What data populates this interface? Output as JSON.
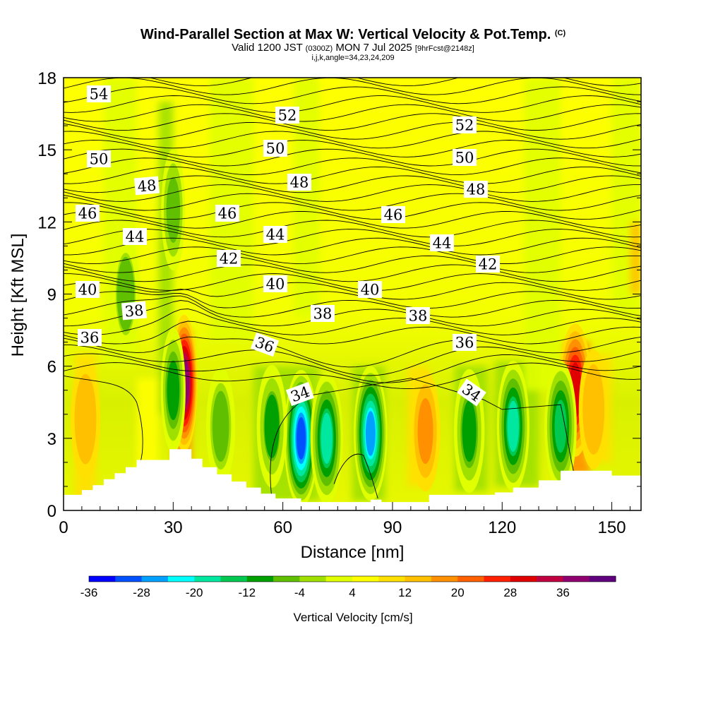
{
  "title": {
    "main": "Wind-Parallel Section at Max W: Vertical Velocity & Pot.Temp.",
    "copyright": "(C)",
    "valid_prefix": "Valid 1200 JST",
    "valid_utc": "(0300Z)",
    "valid_date": "MON 7 Jul 2025",
    "forecast": "[9hrFcst@2148z]",
    "indices": "i,j,k,angle=34,23,24,209"
  },
  "chart_data": {
    "type": "heatmap",
    "xlabel": "Distance [nm]",
    "ylabel": "Height [Kft MSL]",
    "xlim": [
      0,
      158
    ],
    "ylim": [
      0,
      18
    ],
    "x_ticks": [
      0,
      30,
      60,
      90,
      120,
      150
    ],
    "y_ticks": [
      0,
      3,
      6,
      9,
      12,
      15,
      18
    ],
    "colorbar": {
      "label": "Vertical Velocity [cm/s]",
      "tick_labels": [
        -36,
        -28,
        -20,
        -12,
        -4,
        4,
        12,
        20,
        28,
        36
      ],
      "colors": [
        "#0000ff",
        "#0050ff",
        "#00a0ff",
        "#00ffff",
        "#00e8a0",
        "#00c850",
        "#00a000",
        "#60c000",
        "#a0e000",
        "#e0ff00",
        "#ffff00",
        "#ffe000",
        "#ffc000",
        "#ff9000",
        "#ff6000",
        "#ff2000",
        "#e00000",
        "#c00040",
        "#900070",
        "#60007f"
      ]
    },
    "vertical_velocity_cores": [
      {
        "x": 33,
        "y": 5.3,
        "w": 34
      },
      {
        "x": 140,
        "y": 5.0,
        "w": 26
      },
      {
        "x": 6,
        "y": 3.8,
        "w": 11
      },
      {
        "x": 145,
        "y": 4.2,
        "w": 11
      },
      {
        "x": 99,
        "y": 3.3,
        "w": 12
      },
      {
        "x": 43,
        "y": 3.5,
        "w": -10
      },
      {
        "x": 65,
        "y": 3.0,
        "w": -35
      },
      {
        "x": 72,
        "y": 3.0,
        "w": -22
      },
      {
        "x": 84,
        "y": 3.2,
        "w": -30
      },
      {
        "x": 57,
        "y": 3.5,
        "w": -13
      },
      {
        "x": 111,
        "y": 3.3,
        "w": -14
      },
      {
        "x": 123,
        "y": 3.5,
        "w": -22
      },
      {
        "x": 136,
        "y": 3.5,
        "w": -20
      },
      {
        "x": 30,
        "y": 5.0,
        "w": -15
      },
      {
        "x": 30,
        "y": 12.5,
        "w": -12
      },
      {
        "x": 17,
        "y": 9.0,
        "w": -9
      }
    ],
    "potential_temperature_contours": {
      "labels": [
        "54",
        "52",
        "52",
        "50",
        "50",
        "50",
        "48",
        "48",
        "48",
        "46",
        "46",
        "46",
        "44",
        "44",
        "44",
        "42",
        "42",
        "40",
        "40",
        "40",
        "38",
        "38",
        "38",
        "36",
        "36",
        "36",
        "34",
        "34"
      ]
    },
    "terrain_profile": [
      {
        "x": 0,
        "y": 0.65
      },
      {
        "x": 5,
        "y": 0.65
      },
      {
        "x": 5,
        "y": 0.85
      },
      {
        "x": 8,
        "y": 0.85
      },
      {
        "x": 8,
        "y": 1.05
      },
      {
        "x": 11,
        "y": 1.05
      },
      {
        "x": 11,
        "y": 1.3
      },
      {
        "x": 14,
        "y": 1.3
      },
      {
        "x": 14,
        "y": 1.55
      },
      {
        "x": 17,
        "y": 1.55
      },
      {
        "x": 17,
        "y": 1.8
      },
      {
        "x": 20,
        "y": 1.8
      },
      {
        "x": 20,
        "y": 2.1
      },
      {
        "x": 23,
        "y": 2.1
      },
      {
        "x": 29,
        "y": 2.1
      },
      {
        "x": 29,
        "y": 2.55
      },
      {
        "x": 35,
        "y": 2.55
      },
      {
        "x": 35,
        "y": 2.15
      },
      {
        "x": 38,
        "y": 2.15
      },
      {
        "x": 38,
        "y": 1.8
      },
      {
        "x": 42,
        "y": 1.8
      },
      {
        "x": 42,
        "y": 1.5
      },
      {
        "x": 46,
        "y": 1.5
      },
      {
        "x": 46,
        "y": 1.2
      },
      {
        "x": 50,
        "y": 1.2
      },
      {
        "x": 50,
        "y": 0.95
      },
      {
        "x": 54,
        "y": 0.95
      },
      {
        "x": 54,
        "y": 0.7
      },
      {
        "x": 58,
        "y": 0.7
      },
      {
        "x": 58,
        "y": 0.5
      },
      {
        "x": 65,
        "y": 0.5
      },
      {
        "x": 65,
        "y": 0.35
      },
      {
        "x": 84,
        "y": 0.35
      },
      {
        "x": 84,
        "y": 0.45
      },
      {
        "x": 87,
        "y": 0.45
      },
      {
        "x": 87,
        "y": 0.35
      },
      {
        "x": 100,
        "y": 0.35
      },
      {
        "x": 100,
        "y": 0.65
      },
      {
        "x": 106,
        "y": 0.65
      },
      {
        "x": 118,
        "y": 0.65
      },
      {
        "x": 118,
        "y": 0.75
      },
      {
        "x": 123,
        "y": 0.75
      },
      {
        "x": 123,
        "y": 0.95
      },
      {
        "x": 130,
        "y": 0.95
      },
      {
        "x": 130,
        "y": 1.25
      },
      {
        "x": 136,
        "y": 1.25
      },
      {
        "x": 136,
        "y": 1.65
      },
      {
        "x": 150,
        "y": 1.65
      },
      {
        "x": 150,
        "y": 1.45
      },
      {
        "x": 158,
        "y": 1.45
      }
    ]
  }
}
